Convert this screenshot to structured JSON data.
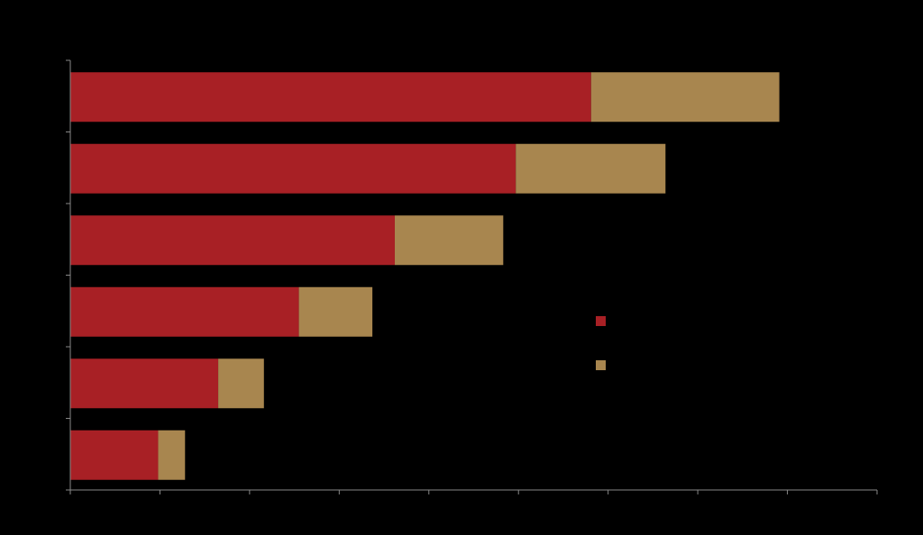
{
  "chart_data": {
    "type": "bar",
    "orientation": "horizontal",
    "stacked": true,
    "title": "",
    "xlabel": "",
    "ylabel": "",
    "categories": [
      "",
      "",
      "",
      "",
      "",
      ""
    ],
    "xlim": [
      0,
      9
    ],
    "x_tick_count": 9,
    "series": [
      {
        "values": [
          5.81,
          4.97,
          3.62,
          2.55,
          1.65,
          0.98
        ],
        "color": "#a82025"
      },
      {
        "values": [
          2.1,
          1.67,
          1.21,
          0.82,
          0.51,
          0.3
        ],
        "color": "#a8864f"
      }
    ],
    "legend_position": "right",
    "grid": false,
    "axis_color": "#888888",
    "background": "#000000"
  }
}
